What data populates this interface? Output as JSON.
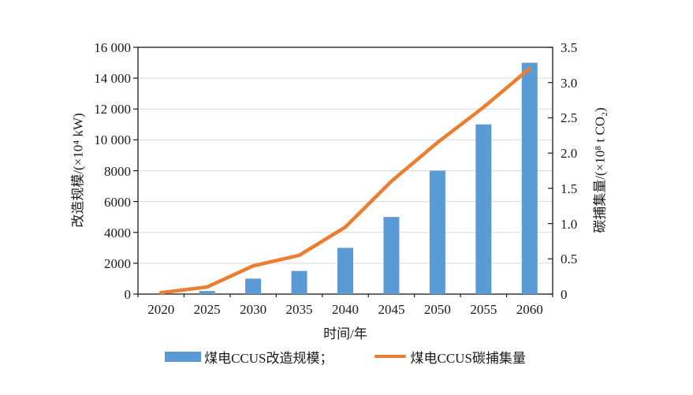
{
  "chart_data": {
    "type": "bar",
    "subtype": "combo-bar-line-dual-axis",
    "categories": [
      "2020",
      "2025",
      "2030",
      "2035",
      "2040",
      "2045",
      "2050",
      "2055",
      "2060"
    ],
    "series": [
      {
        "name": "煤电CCUS改造规模",
        "type": "bar",
        "axis": "left",
        "color": "#5B9BD5",
        "values": [
          0,
          200,
          1000,
          1500,
          3000,
          5000,
          8000,
          11000,
          15000
        ]
      },
      {
        "name": "煤电CCUS碳捕集量",
        "type": "line",
        "axis": "right",
        "color": "#ED7D31",
        "values": [
          0.02,
          0.1,
          0.4,
          0.55,
          0.95,
          1.6,
          2.15,
          2.65,
          3.2
        ]
      }
    ],
    "left_axis": {
      "title": "改造规模/(×10⁴ kW)",
      "min": 0,
      "max": 16000,
      "tick_labels": [
        "0",
        "2000",
        "4000",
        "6000",
        "8000",
        "10 000",
        "12 000",
        "14 000",
        "16 000"
      ]
    },
    "right_axis": {
      "title": "碳捕集量/(×10⁸ t CO₂)",
      "min": 0,
      "max": 3.5,
      "tick_labels": [
        "0",
        "0.5",
        "1.0",
        "1.5",
        "2.0",
        "2.5",
        "3.0",
        "3.5"
      ]
    },
    "x_axis": {
      "title": "时间/年"
    },
    "legend": [
      {
        "marker": "bar-swatch",
        "label": "煤电CCUS改造规模；",
        "color": "#5B9BD5"
      },
      {
        "marker": "line-swatch",
        "label": "煤电CCUS碳捕集量",
        "color": "#ED7D31"
      }
    ],
    "grid": true,
    "legend_position": "bottom",
    "colors": {
      "bar": "#5B9BD5",
      "line": "#ED7D31",
      "gridline": "#D9D9D9",
      "axis": "#1a1a1a",
      "background": "#ffffff"
    }
  }
}
